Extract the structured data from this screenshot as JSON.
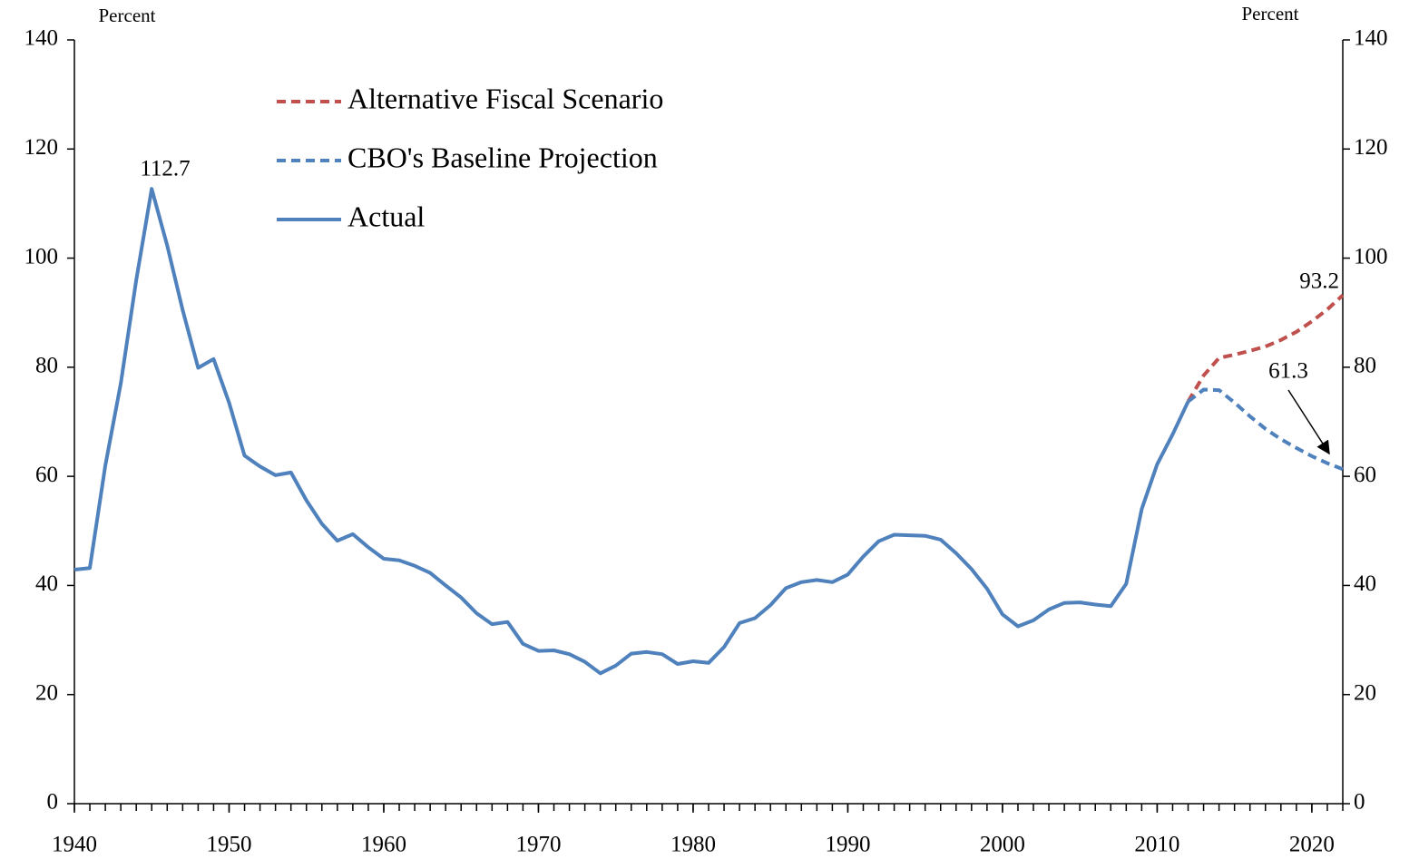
{
  "chart_data": {
    "type": "line",
    "y_axis_label": "Percent",
    "y2_axis_label": "Percent",
    "xlim": [
      1940,
      2022
    ],
    "xticks": [
      1940,
      1950,
      1960,
      1970,
      1980,
      1990,
      2000,
      2010,
      2020
    ],
    "xminorticks": [
      1940,
      1941,
      1942,
      1943,
      1944,
      1945,
      1946,
      1947,
      1948,
      1949,
      1950,
      1951,
      1952,
      1953,
      1954,
      1955,
      1956,
      1957,
      1958,
      1959,
      1960,
      1961,
      1962,
      1963,
      1964,
      1965,
      1966,
      1967,
      1968,
      1969,
      1970,
      1971,
      1972,
      1973,
      1974,
      1975,
      1976,
      1977,
      1978,
      1979,
      1980,
      1981,
      1982,
      1983,
      1984,
      1985,
      1986,
      1987,
      1988,
      1989,
      1990,
      1991,
      1992,
      1993,
      1994,
      1995,
      1996,
      1997,
      1998,
      1999,
      2000,
      2001,
      2002,
      2003,
      2004,
      2005,
      2006,
      2007,
      2008,
      2009,
      2010,
      2011,
      2012,
      2013,
      2014,
      2015,
      2016,
      2017,
      2018,
      2019,
      2020,
      2021,
      2022
    ],
    "ylim": [
      0,
      140
    ],
    "yticks": [
      0,
      20,
      40,
      60,
      80,
      100,
      120,
      140
    ],
    "y2lim": [
      0,
      140
    ],
    "y2ticks": [
      0,
      20,
      40,
      60,
      80,
      100,
      120,
      140
    ],
    "series": [
      {
        "name": "Alternative Fiscal Scenario",
        "color": "#c0504d",
        "dashed": true,
        "x": [
          2012,
          2013,
          2014,
          2015,
          2016,
          2017,
          2018,
          2019,
          2020,
          2021,
          2022
        ],
        "values": [
          73.7,
          78.5,
          81.7,
          82.3,
          83.0,
          83.8,
          85.0,
          86.5,
          88.4,
          90.6,
          93.2
        ]
      },
      {
        "name": "CBO's Baseline Projection",
        "color": "#4f81bd",
        "dashed": true,
        "x": [
          2012,
          2013,
          2014,
          2015,
          2016,
          2017,
          2018,
          2019,
          2020,
          2021,
          2022
        ],
        "values": [
          73.7,
          75.9,
          75.8,
          73.5,
          71.0,
          68.7,
          66.8,
          65.2,
          63.7,
          62.4,
          61.3
        ]
      },
      {
        "name": "Actual",
        "color": "#4f81bd",
        "dashed": false,
        "x": [
          1940,
          1941,
          1942,
          1943,
          1944,
          1945,
          1946,
          1947,
          1948,
          1949,
          1950,
          1951,
          1952,
          1953,
          1954,
          1955,
          1956,
          1957,
          1958,
          1959,
          1960,
          1961,
          1962,
          1963,
          1964,
          1965,
          1966,
          1967,
          1968,
          1969,
          1970,
          1971,
          1972,
          1973,
          1974,
          1975,
          1976,
          1977,
          1978,
          1979,
          1980,
          1981,
          1982,
          1983,
          1984,
          1985,
          1986,
          1987,
          1988,
          1989,
          1990,
          1991,
          1992,
          1993,
          1994,
          1995,
          1996,
          1997,
          1998,
          1999,
          2000,
          2001,
          2002,
          2003,
          2004,
          2005,
          2006,
          2007,
          2008,
          2009,
          2010,
          2011,
          2012
        ],
        "values": [
          42.9,
          43.2,
          62.0,
          77.0,
          96.0,
          112.7,
          102.3,
          90.5,
          79.9,
          81.5,
          73.5,
          63.8,
          61.8,
          60.2,
          60.7,
          55.6,
          51.3,
          48.2,
          49.4,
          47.0,
          44.9,
          44.6,
          43.6,
          42.3,
          40.0,
          37.8,
          34.9,
          32.9,
          33.3,
          29.3,
          28.0,
          28.1,
          27.4,
          26.0,
          23.9,
          25.3,
          27.5,
          27.8,
          27.4,
          25.6,
          26.1,
          25.8,
          28.7,
          33.1,
          34.0,
          36.4,
          39.5,
          40.6,
          41.0,
          40.6,
          42.0,
          45.3,
          48.1,
          49.3,
          49.2,
          49.1,
          48.4,
          45.9,
          43.0,
          39.4,
          34.7,
          32.5,
          33.6,
          35.6,
          36.8,
          36.9,
          36.5,
          36.2,
          40.3,
          54.0,
          62.2,
          67.7,
          73.7
        ]
      }
    ],
    "annotations": [
      "112.7",
      "93.2",
      "61.3"
    ]
  }
}
